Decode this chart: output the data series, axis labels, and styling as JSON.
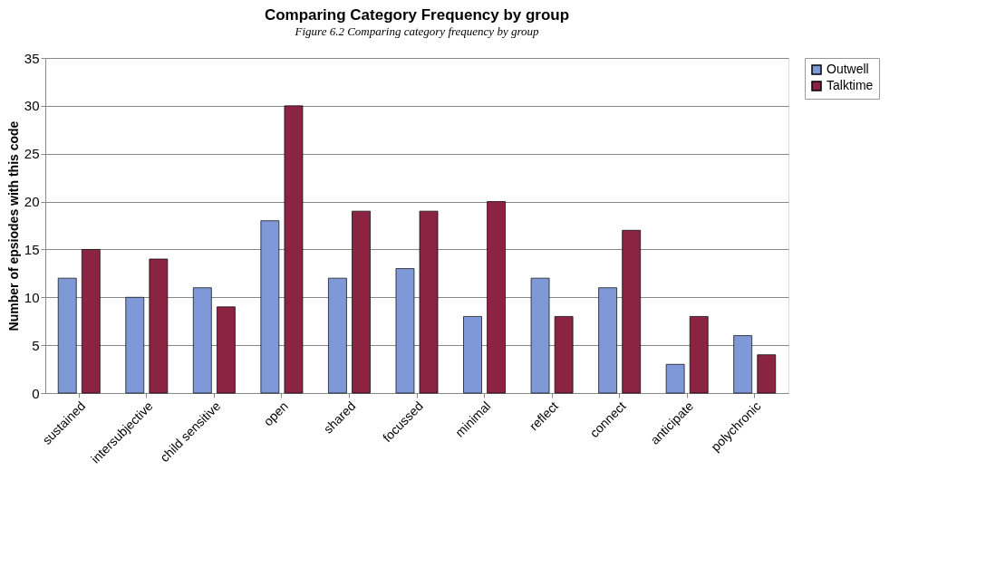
{
  "chart_data": {
    "type": "bar",
    "title": "Comparing Category Frequency by group",
    "annotations": [
      "Figure 6.2 Comparing category frequency by group"
    ],
    "ylabel": "Number of epsiodes with this code",
    "categories": [
      "sustained",
      "intersubjective",
      "child sensitive",
      "open",
      "shared",
      "focussed",
      "minimal",
      "reflect",
      "connect",
      "anticipate",
      "polychronic"
    ],
    "series": [
      {
        "name": "Outwell",
        "color": "#7f98d8",
        "values": [
          12,
          10,
          11,
          18,
          12,
          13,
          8,
          12,
          11,
          3,
          6
        ]
      },
      {
        "name": "Talktime",
        "color": "#8b2343",
        "values": [
          15,
          14,
          9,
          30,
          19,
          19,
          20,
          8,
          17,
          8,
          4
        ]
      }
    ],
    "ylim": [
      0,
      35
    ],
    "yticks": [
      0,
      5,
      10,
      15,
      20,
      25,
      30,
      35
    ],
    "grid": "y",
    "legend": "right"
  }
}
